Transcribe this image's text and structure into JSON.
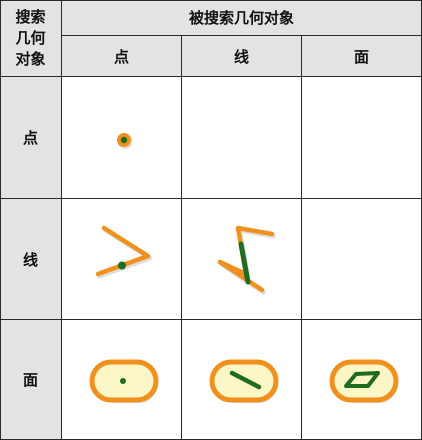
{
  "table": {
    "corner": {
      "line1": "搜索",
      "line2": "几何",
      "line3": "对象"
    },
    "column_group_header": "被搜索几何对象",
    "column_headers": [
      "点",
      "线",
      "面"
    ],
    "row_headers": [
      "点",
      "线",
      "面"
    ]
  },
  "colors": {
    "search_geometry": "#f0901e",
    "searched_geometry": "#1f6b1f",
    "polygon_fill": "#fdf7c8",
    "header_bg": "#e3e3e3",
    "grid_line": "#2a2a2a"
  },
  "cells": [
    {
      "row": "点",
      "col": "点",
      "glyph": "point-on-point-icon"
    },
    {
      "row": "点",
      "col": "线",
      "glyph": "empty"
    },
    {
      "row": "点",
      "col": "面",
      "glyph": "empty"
    },
    {
      "row": "线",
      "col": "点",
      "glyph": "point-on-line-icon"
    },
    {
      "row": "线",
      "col": "线",
      "glyph": "line-on-line-icon"
    },
    {
      "row": "线",
      "col": "面",
      "glyph": "empty"
    },
    {
      "row": "面",
      "col": "点",
      "glyph": "point-in-polygon-icon"
    },
    {
      "row": "面",
      "col": "线",
      "glyph": "line-in-polygon-icon"
    },
    {
      "row": "面",
      "col": "面",
      "glyph": "polygon-in-polygon-icon"
    }
  ]
}
